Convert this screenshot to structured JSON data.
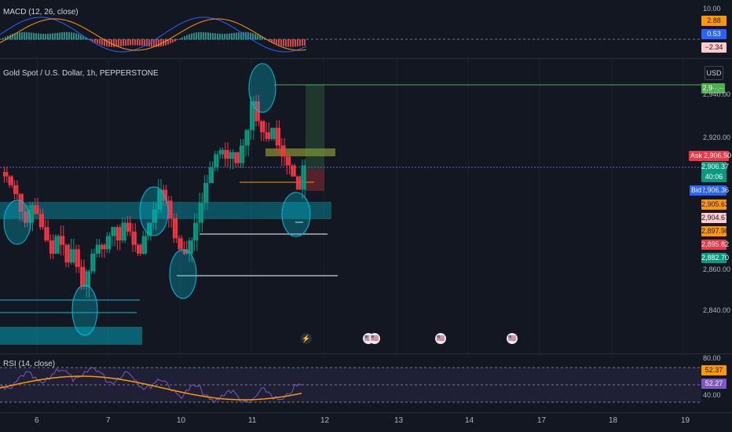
{
  "macd": {
    "title": "MACD (12, 26, close)",
    "axis_ticks": [
      "10.00"
    ],
    "tags": [
      {
        "label": "2.88",
        "color": "#ff9800",
        "text": "#131722"
      },
      {
        "label": "0.53",
        "color": "#2962ff",
        "text": "#ffffff"
      },
      {
        "label": "−2.34",
        "color": "#fccbcd",
        "text": "#131722"
      }
    ]
  },
  "main": {
    "title": "Gold Spot / U.S. Dollar, 1h, PEPPERSTONE",
    "currency_button": "USD",
    "axis_ticks": [
      "2,940.00",
      "2,920.00",
      "2,860.00",
      "2,840.00"
    ],
    "top_tag": {
      "label": "2,9··.··",
      "color": "#4caf50"
    },
    "ask": {
      "badge": "Ask",
      "price": "2,906.50",
      "color": "#f23645"
    },
    "last": {
      "price": "2,906.37",
      "countdown": "40:06",
      "color": "#089981"
    },
    "bid": {
      "badge": "Bid",
      "price": "2,906.36",
      "color": "#2962ff"
    },
    "levels": [
      {
        "label": "2,905.63",
        "color": "#ff9800",
        "text": "#131722"
      },
      {
        "label": "2,904.67",
        "color": "#fccbcd",
        "text": "#131722"
      },
      {
        "label": "2,897.98",
        "color": "#ff9800",
        "text": "#131722"
      },
      {
        "label": "2,895.82",
        "color": "#f23645",
        "text": "#ffffff"
      },
      {
        "label": "2,882.70",
        "color": "#089981",
        "text": "#ffffff"
      }
    ],
    "events": [
      "lightning-icon",
      "us-flag-icon",
      "us-flag-icon",
      "us-flag-icon",
      "us-flag-icon"
    ]
  },
  "rsi": {
    "title": "RSI (14, close)",
    "axis_ticks": [
      "80.00",
      "40.00"
    ],
    "tags": [
      {
        "label": "52.37",
        "color": "#ff9800",
        "text": "#131722"
      },
      {
        "label": "52.27",
        "color": "#7e57c2",
        "text": "#ffffff"
      }
    ]
  },
  "time_axis": [
    "6",
    "7",
    "10",
    "11",
    "12",
    "13",
    "14",
    "17",
    "18",
    "19"
  ]
}
